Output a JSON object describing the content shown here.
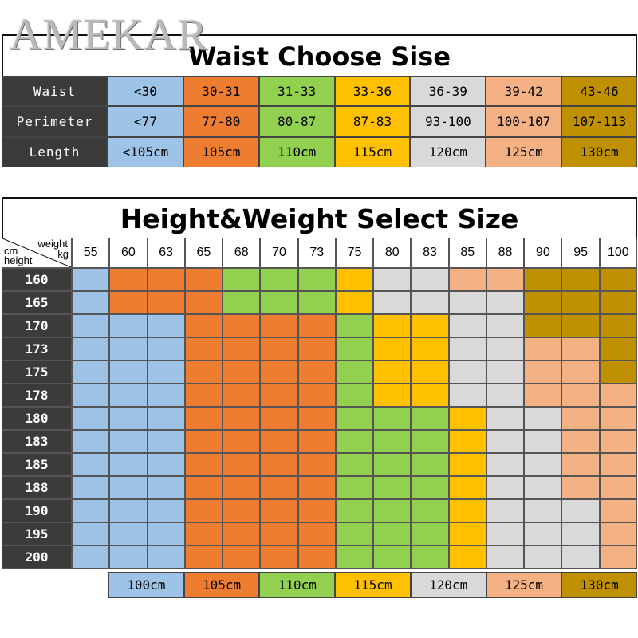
{
  "brand": "AMEKAR",
  "waist_table": {
    "title": "Waist Choose Sise",
    "rows": [
      {
        "label": "Waist",
        "values": [
          "<30",
          "30-31",
          "31-33",
          "33-36",
          "36-39",
          "39-42",
          "43-46"
        ]
      },
      {
        "label": "Perimeter",
        "values": [
          "<77",
          "77-80",
          "80-87",
          "87-83",
          "93-100",
          "100-107",
          "107-113"
        ]
      },
      {
        "label": "Length",
        "values": [
          "<105cm",
          "105cm",
          "110cm",
          "115cm",
          "120cm",
          "125cm",
          "130cm"
        ]
      }
    ]
  },
  "size_table": {
    "title": "Height&Weight Select Size",
    "corner": {
      "weight": "weight",
      "kg": "kg",
      "cm": "cm",
      "height": "height"
    },
    "weights": [
      "55",
      "60",
      "63",
      "65",
      "68",
      "70",
      "73",
      "75",
      "80",
      "83",
      "85",
      "88",
      "90",
      "95",
      "100"
    ],
    "heights": [
      "160",
      "165",
      "170",
      "173",
      "175",
      "178",
      "180",
      "183",
      "185",
      "188",
      "190",
      "195",
      "200"
    ],
    "size_codes": [
      [
        1,
        2,
        2,
        2,
        3,
        3,
        3,
        4,
        5,
        5,
        6,
        6,
        7,
        7,
        7
      ],
      [
        1,
        2,
        2,
        2,
        3,
        3,
        3,
        4,
        5,
        5,
        5,
        5,
        7,
        7,
        7
      ],
      [
        1,
        1,
        1,
        2,
        2,
        2,
        2,
        3,
        4,
        4,
        5,
        5,
        7,
        7,
        7
      ],
      [
        1,
        1,
        1,
        2,
        2,
        2,
        2,
        3,
        4,
        4,
        5,
        5,
        6,
        6,
        7
      ],
      [
        1,
        1,
        1,
        2,
        2,
        2,
        2,
        3,
        4,
        4,
        5,
        5,
        6,
        6,
        7
      ],
      [
        1,
        1,
        1,
        2,
        2,
        2,
        2,
        3,
        4,
        4,
        5,
        5,
        6,
        6,
        6
      ],
      [
        1,
        1,
        1,
        2,
        2,
        2,
        2,
        3,
        3,
        3,
        4,
        5,
        5,
        6,
        6
      ],
      [
        1,
        1,
        1,
        2,
        2,
        2,
        2,
        3,
        3,
        3,
        4,
        5,
        5,
        6,
        6
      ],
      [
        1,
        1,
        1,
        2,
        2,
        2,
        2,
        3,
        3,
        3,
        4,
        5,
        5,
        6,
        6
      ],
      [
        1,
        1,
        1,
        2,
        2,
        2,
        2,
        3,
        3,
        3,
        4,
        5,
        5,
        6,
        6
      ],
      [
        1,
        1,
        1,
        2,
        2,
        2,
        2,
        3,
        3,
        3,
        4,
        5,
        5,
        5,
        6
      ],
      [
        1,
        1,
        1,
        2,
        2,
        2,
        2,
        3,
        3,
        3,
        4,
        5,
        5,
        5,
        6
      ],
      [
        1,
        1,
        1,
        2,
        2,
        2,
        2,
        3,
        3,
        3,
        4,
        5,
        5,
        5,
        6
      ]
    ]
  },
  "legend": [
    "100cm",
    "105cm",
    "110cm",
    "115cm",
    "120cm",
    "125cm",
    "130cm"
  ],
  "colors": {
    "size_1": "#9dc3e6",
    "size_2": "#ed7d31",
    "size_3": "#92d050",
    "size_4": "#ffc000",
    "size_5": "#d9d9d9",
    "size_6": "#f4b183",
    "size_7": "#bf9000",
    "header_bg": "#3b3b3b"
  }
}
